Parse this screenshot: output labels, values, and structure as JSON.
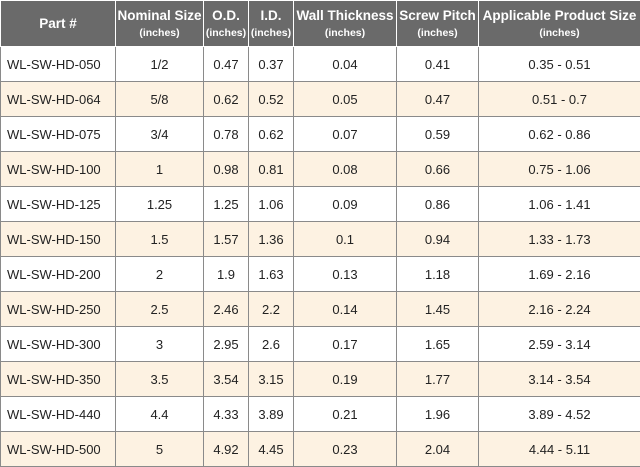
{
  "table": {
    "headers": [
      {
        "title": "Part #",
        "unit": ""
      },
      {
        "title": "Nominal Size",
        "unit": "(inches)"
      },
      {
        "title": "O.D.",
        "unit": "(inches)"
      },
      {
        "title": "I.D.",
        "unit": "(inches)"
      },
      {
        "title": "Wall Thickness",
        "unit": "(inches)"
      },
      {
        "title": "Screw Pitch",
        "unit": "(inches)"
      },
      {
        "title": "Applicable Product Size",
        "unit": "(inches)"
      }
    ],
    "rows": [
      [
        "WL-SW-HD-050",
        "1/2",
        "0.47",
        "0.37",
        "0.04",
        "0.41",
        "0.35 - 0.51"
      ],
      [
        "WL-SW-HD-064",
        "5/8",
        "0.62",
        "0.52",
        "0.05",
        "0.47",
        "0.51 - 0.7"
      ],
      [
        "WL-SW-HD-075",
        "3/4",
        "0.78",
        "0.62",
        "0.07",
        "0.59",
        "0.62 - 0.86"
      ],
      [
        "WL-SW-HD-100",
        "1",
        "0.98",
        "0.81",
        "0.08",
        "0.66",
        "0.75 - 1.06"
      ],
      [
        "WL-SW-HD-125",
        "1.25",
        "1.25",
        "1.06",
        "0.09",
        "0.86",
        "1.06 - 1.41"
      ],
      [
        "WL-SW-HD-150",
        "1.5",
        "1.57",
        "1.36",
        "0.1",
        "0.94",
        "1.33 - 1.73"
      ],
      [
        "WL-SW-HD-200",
        "2",
        "1.9",
        "1.63",
        "0.13",
        "1.18",
        "1.69 - 2.16"
      ],
      [
        "WL-SW-HD-250",
        "2.5",
        "2.46",
        "2.2",
        "0.14",
        "1.45",
        "2.16 - 2.24"
      ],
      [
        "WL-SW-HD-300",
        "3",
        "2.95",
        "2.6",
        "0.17",
        "1.65",
        "2.59 - 3.14"
      ],
      [
        "WL-SW-HD-350",
        "3.5",
        "3.54",
        "3.15",
        "0.19",
        "1.77",
        "3.14 - 3.54"
      ],
      [
        "WL-SW-HD-440",
        "4.4",
        "4.33",
        "3.89",
        "0.21",
        "1.96",
        "3.89 - 4.52"
      ],
      [
        "WL-SW-HD-500",
        "5",
        "4.92",
        "4.45",
        "0.23",
        "2.04",
        "4.44 - 5.11"
      ]
    ]
  }
}
